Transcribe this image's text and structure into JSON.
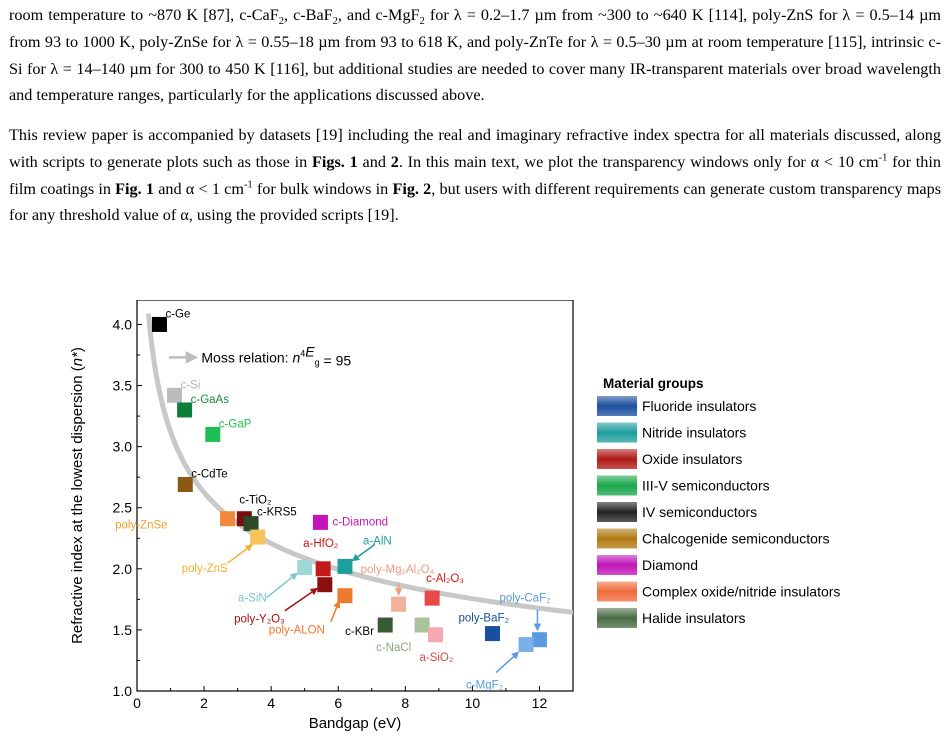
{
  "paragraphs": [
    {
      "id": "p1",
      "segments": [
        {
          "t": "room temperature to ~870 K [87], c-CaF"
        },
        {
          "t": "2",
          "sub": true
        },
        {
          "t": ", c-BaF"
        },
        {
          "t": "2",
          "sub": true
        },
        {
          "t": ", and c-MgF"
        },
        {
          "t": "2",
          "sub": true
        },
        {
          "t": " for  λ = 0.2–1.7 µm from ~300 to ~640 K [114], poly-ZnS for λ = 0.5–14 µm from 93 to 1000 K, poly-ZnSe for λ = 0.55–18 µm from 93 to 618 K, and poly-ZnTe for λ = 0.5–30 µm at room temperature [115], intrinsic c-Si for λ = 14–140 µm for 300 to 450 K [116], but additional studies are needed to cover many IR-transparent materials over broad wavelength and temperature ranges, particularly for the applications discussed above."
        }
      ]
    },
    {
      "id": "p2",
      "segments": [
        {
          "t": "This review paper is accompanied by datasets [19] including the real and imaginary refractive index spectra for all materials discussed, along with scripts to generate plots such as those in "
        },
        {
          "t": "Figs. 1",
          "bold": true
        },
        {
          "t": " and "
        },
        {
          "t": "2",
          "bold": true
        },
        {
          "t": ". In this main text, we plot the transparency windows only for α < 10 cm"
        },
        {
          "t": "-1",
          "sup": true
        },
        {
          "t": " for thin film coatings in "
        },
        {
          "t": "Fig. 1",
          "bold": true
        },
        {
          "t": " and α < 1 cm"
        },
        {
          "t": "-1",
          "sup": true
        },
        {
          "t": " for bulk windows in "
        },
        {
          "t": "Fig. 2",
          "bold": true
        },
        {
          "t": ", but users with different requirements can generate custom transparency maps for any threshold value of α, using the provided scripts [19]."
        }
      ]
    }
  ],
  "chart_data": {
    "type": "scatter",
    "xlabel": "Bandgap (eV)",
    "ylabel": "Refractive index at the lowest dispersion (n*)",
    "xlim": [
      0,
      13
    ],
    "ylim": [
      1.0,
      4.2
    ],
    "xticks": [
      0,
      2,
      4,
      6,
      8,
      10,
      12
    ],
    "yticks": [
      1.0,
      1.5,
      2.0,
      2.5,
      3.0,
      3.5,
      4.0
    ],
    "grid": false,
    "curve": {
      "label": "Moss relation: n⁴E_g = 95",
      "relation_constant": 95,
      "color": "#c8c8c8"
    },
    "legend": {
      "title": "Material groups",
      "placement": "right",
      "items": [
        {
          "label": "Fluoride insulators",
          "color": "#1a4fa0"
        },
        {
          "label": "Nitride insulators",
          "color": "#1f9e9e"
        },
        {
          "label": "Oxide insulators",
          "color": "#b01818"
        },
        {
          "label": "III-V semiconductors",
          "color": "#1aa64a"
        },
        {
          "label": "IV semiconductors",
          "color": "#222222"
        },
        {
          "label": "Chalcogenide semiconductors",
          "color": "#b07a10"
        },
        {
          "label": "Diamond",
          "color": "#c014b8"
        },
        {
          "label": "Complex oxide/nitride insulators",
          "color": "#ee6a3a"
        },
        {
          "label": "Halide insulators",
          "color": "#4a6b45"
        }
      ]
    },
    "points": [
      {
        "label": "c-Ge",
        "x": 0.67,
        "y": 4.0,
        "color": "#000000",
        "label_color": "#000000"
      },
      {
        "label": "c-Si",
        "x": 1.12,
        "y": 3.42,
        "color": "#bbbbbb",
        "label_color": "#b5b5b5"
      },
      {
        "label": "c-GaAs",
        "x": 1.42,
        "y": 3.3,
        "color": "#0f7d3a",
        "label_color": "#1b8c3e"
      },
      {
        "label": "c-GaP",
        "x": 2.26,
        "y": 3.1,
        "color": "#1fbf55",
        "label_color": "#27c050"
      },
      {
        "label": "c-CdTe",
        "x": 1.44,
        "y": 2.69,
        "color": "#8b5a12",
        "label_color": "#000000"
      },
      {
        "label": "c-TiO₂",
        "x": 3.2,
        "y": 2.41,
        "color": "#7a0d0d",
        "label_color": "#000000"
      },
      {
        "label": "c-KRS5",
        "x": 3.4,
        "y": 2.37,
        "color": "#2a4a28",
        "label_color": "#000000"
      },
      {
        "label": "poly-ZnSe",
        "x": 2.7,
        "y": 2.41,
        "color": "#f08a3a",
        "label_color": "#f0a030"
      },
      {
        "label": "poly-ZnS",
        "x": 3.6,
        "y": 2.26,
        "color": "#f6c25a",
        "label_color": "#f0b030"
      },
      {
        "label": "c-Diamond",
        "x": 5.47,
        "y": 2.38,
        "color": "#c414bc",
        "label_color": "#c414bc"
      },
      {
        "label": "a-HfO₂",
        "x": 5.55,
        "y": 2.0,
        "color": "#c41a1a",
        "label_color": "#c41a1a"
      },
      {
        "label": "a-AlN",
        "x": 6.2,
        "y": 2.02,
        "color": "#1f9e9e",
        "label_color": "#1f9e9e"
      },
      {
        "label": "a-SiN",
        "x": 5.0,
        "y": 2.01,
        "color": "#9fd6d6",
        "label_color": "#7cc6d0"
      },
      {
        "label": "poly-Y₂O₃",
        "x": 5.6,
        "y": 1.87,
        "color": "#8a1010",
        "label_color": "#a01010"
      },
      {
        "label": "poly-ALON",
        "x": 6.2,
        "y": 1.78,
        "color": "#ee7a30",
        "label_color": "#ee7a30"
      },
      {
        "label": "poly-Mg₂Al₂O₄",
        "x": 7.8,
        "y": 1.71,
        "color": "#f3b09a",
        "label_color": "#f09a82"
      },
      {
        "label": "c-Al₂O₃",
        "x": 8.8,
        "y": 1.76,
        "color": "#e84848",
        "label_color": "#c41a1a"
      },
      {
        "label": "c-KBr",
        "x": 7.4,
        "y": 1.54,
        "color": "#3a5a34",
        "label_color": "#000000"
      },
      {
        "label": "c-NaCl",
        "x": 8.5,
        "y": 1.54,
        "color": "#a8c29c",
        "label_color": "#8aa880"
      },
      {
        "label": "a-SiO₂",
        "x": 8.9,
        "y": 1.46,
        "color": "#f4aab0",
        "label_color": "#e04848"
      },
      {
        "label": "poly-BaF₂",
        "x": 10.6,
        "y": 1.47,
        "color": "#1a4fa0",
        "label_color": "#1a4fa0"
      },
      {
        "label": "poly-CaF₂",
        "x": 12.0,
        "y": 1.42,
        "color": "#5a9ae0",
        "label_color": "#5a9ae0"
      },
      {
        "label": "c-MgF₂",
        "x": 11.6,
        "y": 1.38,
        "color": "#7ab0e8",
        "label_color": "#5a9ae0"
      }
    ]
  }
}
